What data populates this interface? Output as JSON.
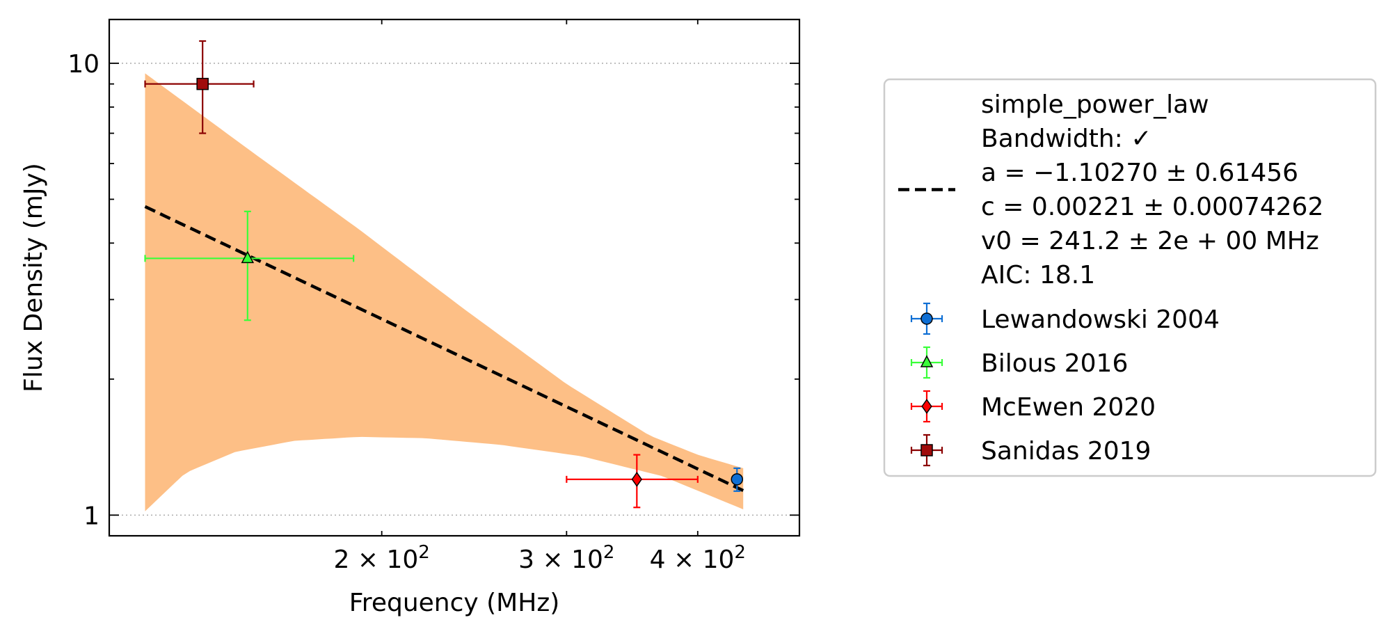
{
  "chart_data": {
    "type": "scatter",
    "xlabel": "Frequency (MHz)",
    "ylabel": "Flux Density (mJy)",
    "xscale": "log",
    "yscale": "log",
    "xlim": [
      110,
      500
    ],
    "ylim": [
      0.9,
      12.5
    ],
    "x_ticks": [
      {
        "value": 200,
        "label_base": "2 × 10",
        "label_exp": "2"
      },
      {
        "value": 300,
        "label_base": "3 × 10",
        "label_exp": "2"
      },
      {
        "value": 400,
        "label_base": "4 × 10",
        "label_exp": "2"
      }
    ],
    "y_ticks": [
      {
        "value": 1,
        "label": "1"
      },
      {
        "value": 10,
        "label": "10"
      }
    ],
    "grid": "y-major-dotted",
    "legend_placement": "outside-right",
    "fit": {
      "name": "simple_power_law",
      "lines": [
        "simple_power_law",
        "Bandwidth: ✓",
        "a = −1.10270 ± 0.61456",
        "c = 0.00221 ± 0.00074262",
        "v0 = 241.2 ± 2e + 00 MHz",
        "AIC: 18.1"
      ],
      "a": -1.1027,
      "c": 0.00221,
      "v0": 241.2,
      "x_range": [
        119,
        442
      ],
      "band_lower": [
        [
          119,
          1.02
        ],
        [
          130,
          1.24
        ],
        [
          145,
          1.38
        ],
        [
          165,
          1.46
        ],
        [
          190,
          1.49
        ],
        [
          220,
          1.48
        ],
        [
          260,
          1.43
        ],
        [
          310,
          1.35
        ],
        [
          370,
          1.22
        ],
        [
          442,
          1.03
        ]
      ],
      "band_upper": [
        [
          119,
          9.5
        ],
        [
          150,
          6.4
        ],
        [
          190,
          4.3
        ],
        [
          240,
          2.85
        ],
        [
          300,
          1.95
        ],
        [
          360,
          1.5
        ],
        [
          400,
          1.36
        ],
        [
          442,
          1.27
        ]
      ],
      "color": "#000000",
      "band_color": "#fdbf86"
    },
    "series": [
      {
        "name": "Lewandowski 2004",
        "marker": "circle",
        "color": "#0f6fd4",
        "ecolor": "#0f6fd4",
        "points": [
          {
            "x": 436,
            "y": 1.2,
            "xerr": [
              2,
              2
            ],
            "yerr": [
              0.07,
              0.07
            ]
          }
        ]
      },
      {
        "name": "Bilous 2016",
        "marker": "triangle",
        "color": "#39ff39",
        "ecolor": "#39ff39",
        "points": [
          {
            "x": 149,
            "y": 3.7,
            "xerr": [
              30,
              39
            ],
            "yerr": [
              1.0,
              1.0
            ]
          }
        ]
      },
      {
        "name": "McEwen 2020",
        "marker": "diamond",
        "color": "#ff0000",
        "ecolor": "#ff0000",
        "points": [
          {
            "x": 350,
            "y": 1.2,
            "xerr": [
              50,
              50
            ],
            "yerr": [
              0.16,
              0.16
            ]
          }
        ]
      },
      {
        "name": "Sanidas 2019",
        "marker": "square",
        "color": "#a00b0b",
        "ecolor": "#8b0000",
        "points": [
          {
            "x": 135,
            "y": 9.0,
            "xerr": [
              16,
              16
            ],
            "yerr": [
              2.0,
              2.2
            ]
          }
        ]
      }
    ]
  }
}
